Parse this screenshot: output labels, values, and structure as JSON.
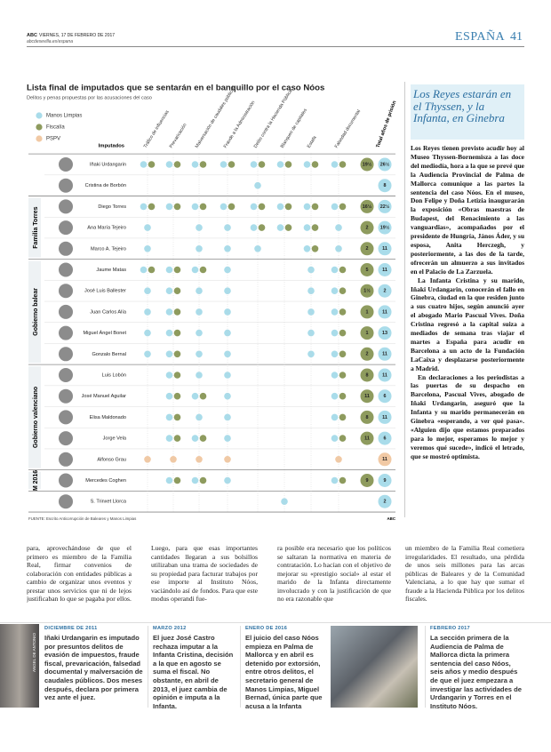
{
  "header": {
    "brand": "ABC",
    "date": "VIERNES, 17 DE FEBRERO DE 2017",
    "url": "abcdesevilla.es/espana",
    "section": "ESPAÑA",
    "page": "41"
  },
  "infographic": {
    "title": "Lista final de imputados que se sentarán en el banquillo por el caso Nóos",
    "subtitle": "Delitos y penas propuestas por las acusaciones del caso",
    "legend": [
      {
        "code": "m",
        "name": "Manos Limpias",
        "color": "#a9dcea"
      },
      {
        "code": "f",
        "name": "Fiscalía",
        "color": "#8e9b5e"
      },
      {
        "code": "p",
        "name": "PSPV",
        "color": "#f1c9a4"
      }
    ],
    "names_header": "Imputados",
    "columns": [
      "Tráfico de influencias",
      "Prevaricación",
      "Malversación de caudales públicos",
      "Fraude a la Administración",
      "Delito contra la Hacienda Pública",
      "Blanqueo de capitales",
      "Estafa",
      "Falsedad documental"
    ],
    "total_header": "Total años de prisión",
    "groups": [
      {
        "rows": [
          {
            "name": "Iñaki Urdangarin",
            "cells": [
              "mf",
              "mf",
              "mf",
              "mf",
              "mf",
              "mf",
              "mf",
              "mf"
            ],
            "totals": [
              {
                "by": "f",
                "label": "19½"
              },
              {
                "by": "m",
                "label": "26½"
              }
            ]
          },
          {
            "name": "Cristina de Borbón",
            "cells": [
              "",
              "",
              "",
              "",
              "m",
              "",
              "",
              ""
            ],
            "totals": [
              {
                "by": "m",
                "label": "8"
              }
            ]
          }
        ]
      },
      {
        "label": "Familia Torres",
        "rows": [
          {
            "name": "Diego Torres",
            "cells": [
              "mf",
              "mf",
              "mf",
              "mf",
              "mf",
              "mf",
              "mf",
              "mf"
            ],
            "totals": [
              {
                "by": "f",
                "label": "16½"
              },
              {
                "by": "m",
                "label": "22½"
              }
            ]
          },
          {
            "name": "Ana María Tejeiro",
            "cells": [
              "m",
              "",
              "m",
              "m",
              "mf",
              "mf",
              "mf",
              "m"
            ],
            "totals": [
              {
                "by": "f",
                "label": "2"
              },
              {
                "by": "m",
                "label": "19½"
              }
            ]
          },
          {
            "name": "Marco A. Tejeiro",
            "cells": [
              "m",
              "",
              "m",
              "m",
              "m",
              "",
              "mf",
              "m"
            ],
            "totals": [
              {
                "by": "f",
                "label": "2"
              },
              {
                "by": "m",
                "label": "11"
              }
            ]
          }
        ]
      },
      {
        "label": "Gobierno balear",
        "rows": [
          {
            "name": "Jaume Matas",
            "cells": [
              "mf",
              "mf",
              "mf",
              "m",
              "",
              "",
              "m",
              "mf"
            ],
            "totals": [
              {
                "by": "f",
                "label": "5"
              },
              {
                "by": "m",
                "label": "11"
              }
            ]
          },
          {
            "name": "José Luis Ballester",
            "cells": [
              "m",
              "mf",
              "m",
              "m",
              "",
              "",
              "m",
              "mf"
            ],
            "totals": [
              {
                "by": "f",
                "label": "1½"
              },
              {
                "by": "m",
                "label": "2"
              }
            ]
          },
          {
            "name": "Juan Carlos Alía",
            "cells": [
              "m",
              "mf",
              "m",
              "m",
              "",
              "",
              "m",
              "mf"
            ],
            "totals": [
              {
                "by": "f",
                "label": "1"
              },
              {
                "by": "m",
                "label": "11"
              }
            ]
          },
          {
            "name": "Miguel Ángel Bonet",
            "cells": [
              "m",
              "mf",
              "m",
              "m",
              "",
              "",
              "m",
              "mf"
            ],
            "totals": [
              {
                "by": "f",
                "label": "1"
              },
              {
                "by": "m",
                "label": "13"
              }
            ]
          },
          {
            "name": "Gonzalo Bernal",
            "cells": [
              "m",
              "mf",
              "m",
              "m",
              "",
              "",
              "m",
              "mf"
            ],
            "totals": [
              {
                "by": "f",
                "label": "2"
              },
              {
                "by": "m",
                "label": "11"
              }
            ]
          }
        ]
      },
      {
        "label": "Gobierno valenciano",
        "rows": [
          {
            "name": "Luis Lobón",
            "cells": [
              "",
              "mf",
              "m",
              "m",
              "",
              "",
              "",
              "mf"
            ],
            "totals": [
              {
                "by": "f",
                "label": "8"
              },
              {
                "by": "m",
                "label": "11"
              }
            ]
          },
          {
            "name": "José Manuel Aguilar",
            "cells": [
              "",
              "mf",
              "mf",
              "m",
              "",
              "",
              "",
              "mf"
            ],
            "totals": [
              {
                "by": "f",
                "label": "11"
              },
              {
                "by": "m",
                "label": "6"
              }
            ]
          },
          {
            "name": "Elisa Maldonado",
            "cells": [
              "",
              "mf",
              "m",
              "m",
              "",
              "",
              "",
              "mf"
            ],
            "totals": [
              {
                "by": "f",
                "label": "8"
              },
              {
                "by": "m",
                "label": "11"
              }
            ]
          },
          {
            "name": "Jorge Vela",
            "cells": [
              "",
              "mf",
              "mf",
              "m",
              "",
              "",
              "",
              "mf"
            ],
            "totals": [
              {
                "by": "f",
                "label": "11"
              },
              {
                "by": "m",
                "label": "6"
              }
            ]
          },
          {
            "name": "Alfonso Grau",
            "cells": [
              "p",
              "p",
              "p",
              "p",
              "",
              "",
              "",
              "p"
            ],
            "totals": [
              {
                "by": "p",
                "label": "11"
              }
            ]
          }
        ]
      },
      {
        "label": "M 2016",
        "rows": [
          {
            "name": "Mercedes Coghen",
            "cells": [
              "",
              "mf",
              "mf",
              "m",
              "",
              "",
              "",
              "mf"
            ],
            "totals": [
              {
                "by": "f",
                "label": "9"
              },
              {
                "by": "m",
                "label": "9"
              }
            ]
          }
        ]
      },
      {
        "rows": [
          {
            "name": "S. Trinxet Llorca",
            "cells": [
              "",
              "",
              "",
              "",
              "",
              "m",
              "",
              ""
            ],
            "totals": [
              {
                "by": "m",
                "label": "2"
              }
            ]
          }
        ]
      }
    ],
    "source": "FUENTE: Escrito Anticorrupción de Baleares y Manos Limpias",
    "credit": "ABC"
  },
  "sidebar": {
    "headline": "Los Reyes estarán en el Thyssen, y la Infanta, en Ginebra",
    "paragraphs": [
      "Los Reyes tienen previsto acudir hoy al Museo Thyssen-Bornemisza a las doce del mediodía, hora a la que se prevé que la Audiencia Provincial de Palma de Mallorca comunique a las partes la sentencia del caso Nóos. En el museo, Don Felipe y Doña Letizia inaugurarán la exposición «Obras maestras de Budapest, del Renacimiento a las vanguardias», acompañados por el presidente de Hungría, János Áder, y su esposa, Anita Herczegh, y posteriormente, a las dos de la tarde, ofrecerán un almuerzo a sus invitados en el Palacio de La Zarzuela.",
      "La Infanta Cristina y su marido, Iñaki Urdangarin, conocerán el fallo en Ginebra, ciudad en la que residen junto a sus cuatro hijos, según anunció ayer el abogado Mario Pascual Vives. Doña Cristina regresó a la capital suiza a mediados de semana tras viajar el martes a España para acudir en Barcelona a un acto de la Fundación LaCaixa y desplazarse posteriormente a Madrid.",
      "En declaraciones a los periodistas a las puertas de su despacho en Barcelona, Pascual Vives, abogado de Iñaki Urdangarin, aseguró que la Infanta y su marido permanecerán en Ginebra «esperando, a ver qué pasa». «Alguien dijo que estamos preparados para lo mejor, esperamos lo mejor y veremos qué sucede», indicó el letrado, que se mostró optimista."
    ]
  },
  "body": {
    "columns": [
      "para, aprovechándose de que el primero es miembro de la Familia Real, firmar convenios de colaboración con entidades públicas a cambio de organizar unos eventos y prestar unos servicios que ni de lejos justificaban lo que se pagaba por ellos.",
      "Luego, para que esas importantes cantidades llegaran a sus bolsillos utilizaban una trama de sociedades de su propiedad para facturar trabajos por ese importe al Instituto Nóos, vaciándolo así de fondos. Para que este modus operandi fue-",
      "ra posible era necesario que los políticos se saltaran la normativa en materia de contratación. Lo hacían con el objetivo de mejorar su «prestigio social» al estar el marido de la Infanta directamente involucrado y con la justificación de que no era razonable que",
      "un miembro de la Familia Real cometiera irregularidades. El resultado, una pérdida de unos seis millones para las arcas públicas de Baleares y de la Comunidad Valenciana, a lo que hay que sumar el fraude a la Hacienda Pública por los delitos fiscales."
    ]
  },
  "timeline": [
    {
      "date": "DICIEMBRE DE 2011",
      "text": "Iñaki Urdangarin es imputado por presuntos delitos de evasión de impuestos, fraude fiscal, prevaricación, falsedad documental y malversación de caudales públicos. Dos meses después, declara por primera vez ante el juez."
    },
    {
      "date": "MARZO 2012",
      "text": "El juez José Castro rechaza imputar a la Infanta Cristina, decisión a la que en agosto se suma el fiscal. No obstante, en abril de 2013, el juez cambia de opinión e imputa a la Infanta."
    },
    {
      "date": "ENERO DE 2016",
      "text": "El juicio del caso Nóos empieza en Palma de Mallorca y en abril es detenido por extorsión, entre otros delitos, el secretario general de Manos Limpias, Miguel Bernad, única parte que acusa a la Infanta Cristina."
    },
    {
      "date": "FEBRERO 2017",
      "text": "La sección primera de la Audiencia de Palma de Mallorca dicta la primera sentencia del caso Nóos, seis años y medio después de que el juez empezara a investigar las actividades de Urdangarin y Torres en el Instituto Nóos."
    }
  ],
  "photo_credit": "ANGEL DE ANTONIO"
}
